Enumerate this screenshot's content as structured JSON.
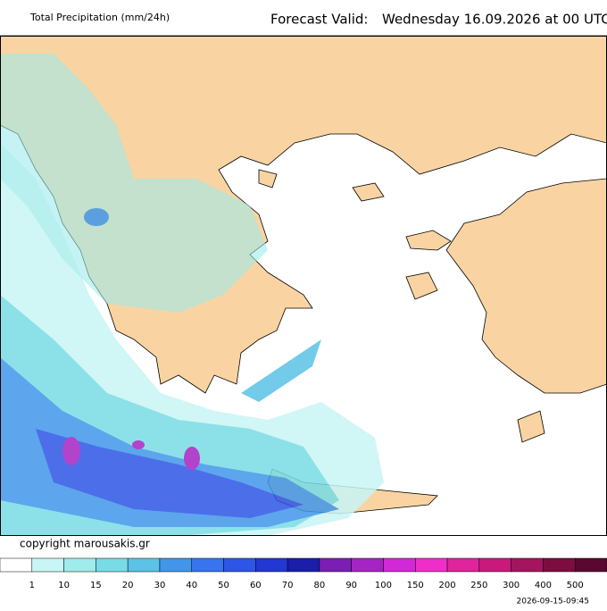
{
  "header": {
    "title": "Total Precipitation (mm/24h)",
    "forecast_label": "Forecast Valid:",
    "forecast_time": "Wednesday 16.09.2026 at 00 UTC"
  },
  "copyright": "copyright marousakis.gr",
  "legend": {
    "labels": [
      1,
      10,
      15,
      20,
      30,
      40,
      50,
      60,
      70,
      80,
      90,
      100,
      150,
      200,
      250,
      300,
      400,
      500
    ],
    "colors": [
      "#ffffff",
      "#c8f5f5",
      "#a0ebeb",
      "#78dce6",
      "#5ac3e6",
      "#4196ea",
      "#3774ee",
      "#2d55e6",
      "#2337d2",
      "#1a1ea8",
      "#7a1eb4",
      "#a524c3",
      "#d228d7",
      "#ef2ec9",
      "#e0249c",
      "#c8197d",
      "#a5145f",
      "#7d0c41",
      "#5a0830"
    ]
  },
  "timestamp": "2026-09-15-09:45"
}
